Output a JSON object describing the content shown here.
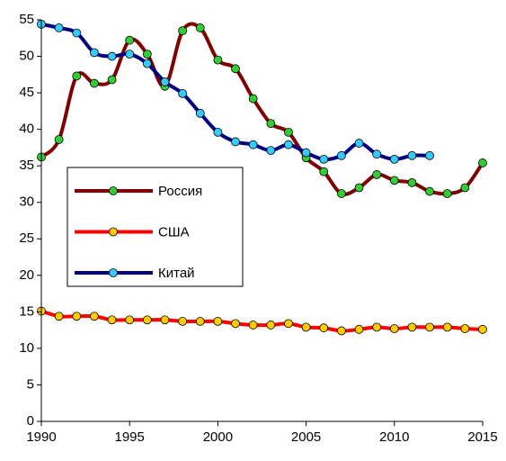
{
  "chart_data": {
    "type": "line",
    "x": [
      1990,
      1991,
      1992,
      1993,
      1994,
      1995,
      1996,
      1997,
      1998,
      1999,
      2000,
      2001,
      2002,
      2003,
      2004,
      2005,
      2006,
      2007,
      2008,
      2009,
      2010,
      2011,
      2012,
      2013,
      2014,
      2015
    ],
    "series": [
      {
        "name": "Россия",
        "color": "#800000",
        "marker_color": "#33cc33",
        "values": [
          36.2,
          38.6,
          47.3,
          46.3,
          46.8,
          52.2,
          50.3,
          45.9,
          53.5,
          53.9,
          49.5,
          48.3,
          44.2,
          40.8,
          39.6,
          36.1,
          34.2,
          31.2,
          32.0,
          33.8,
          33.0,
          32.7,
          31.5,
          31.2,
          32.0,
          35.4
        ]
      },
      {
        "name": "США",
        "color": "#ff0000",
        "marker_color": "#ffcc00",
        "values": [
          15.1,
          14.4,
          14.4,
          14.4,
          13.9,
          13.9,
          13.9,
          13.9,
          13.7,
          13.7,
          13.7,
          13.4,
          13.2,
          13.2,
          13.4,
          12.9,
          12.8,
          12.4,
          12.6,
          12.9,
          12.7,
          12.9,
          12.9,
          12.9,
          12.7,
          12.6
        ]
      },
      {
        "name": "Китай",
        "color": "#000080",
        "marker_color": "#33ccff",
        "values": [
          54.4,
          53.9,
          53.2,
          50.5,
          50.0,
          50.3,
          49.0,
          46.5,
          44.9,
          42.2,
          39.6,
          38.3,
          37.9,
          37.1,
          37.9,
          36.8,
          35.9,
          36.4,
          38.1,
          36.6,
          35.9,
          36.4,
          36.4,
          null,
          null,
          null
        ]
      }
    ],
    "xlim": [
      1990,
      2015
    ],
    "xticks": [
      1990,
      1995,
      2000,
      2005,
      2010,
      2015
    ],
    "ylim": [
      0,
      55
    ],
    "yticks": [
      0,
      5,
      10,
      15,
      20,
      25,
      30,
      35,
      40,
      45,
      50,
      55
    ],
    "smooth": true,
    "grid": false
  }
}
